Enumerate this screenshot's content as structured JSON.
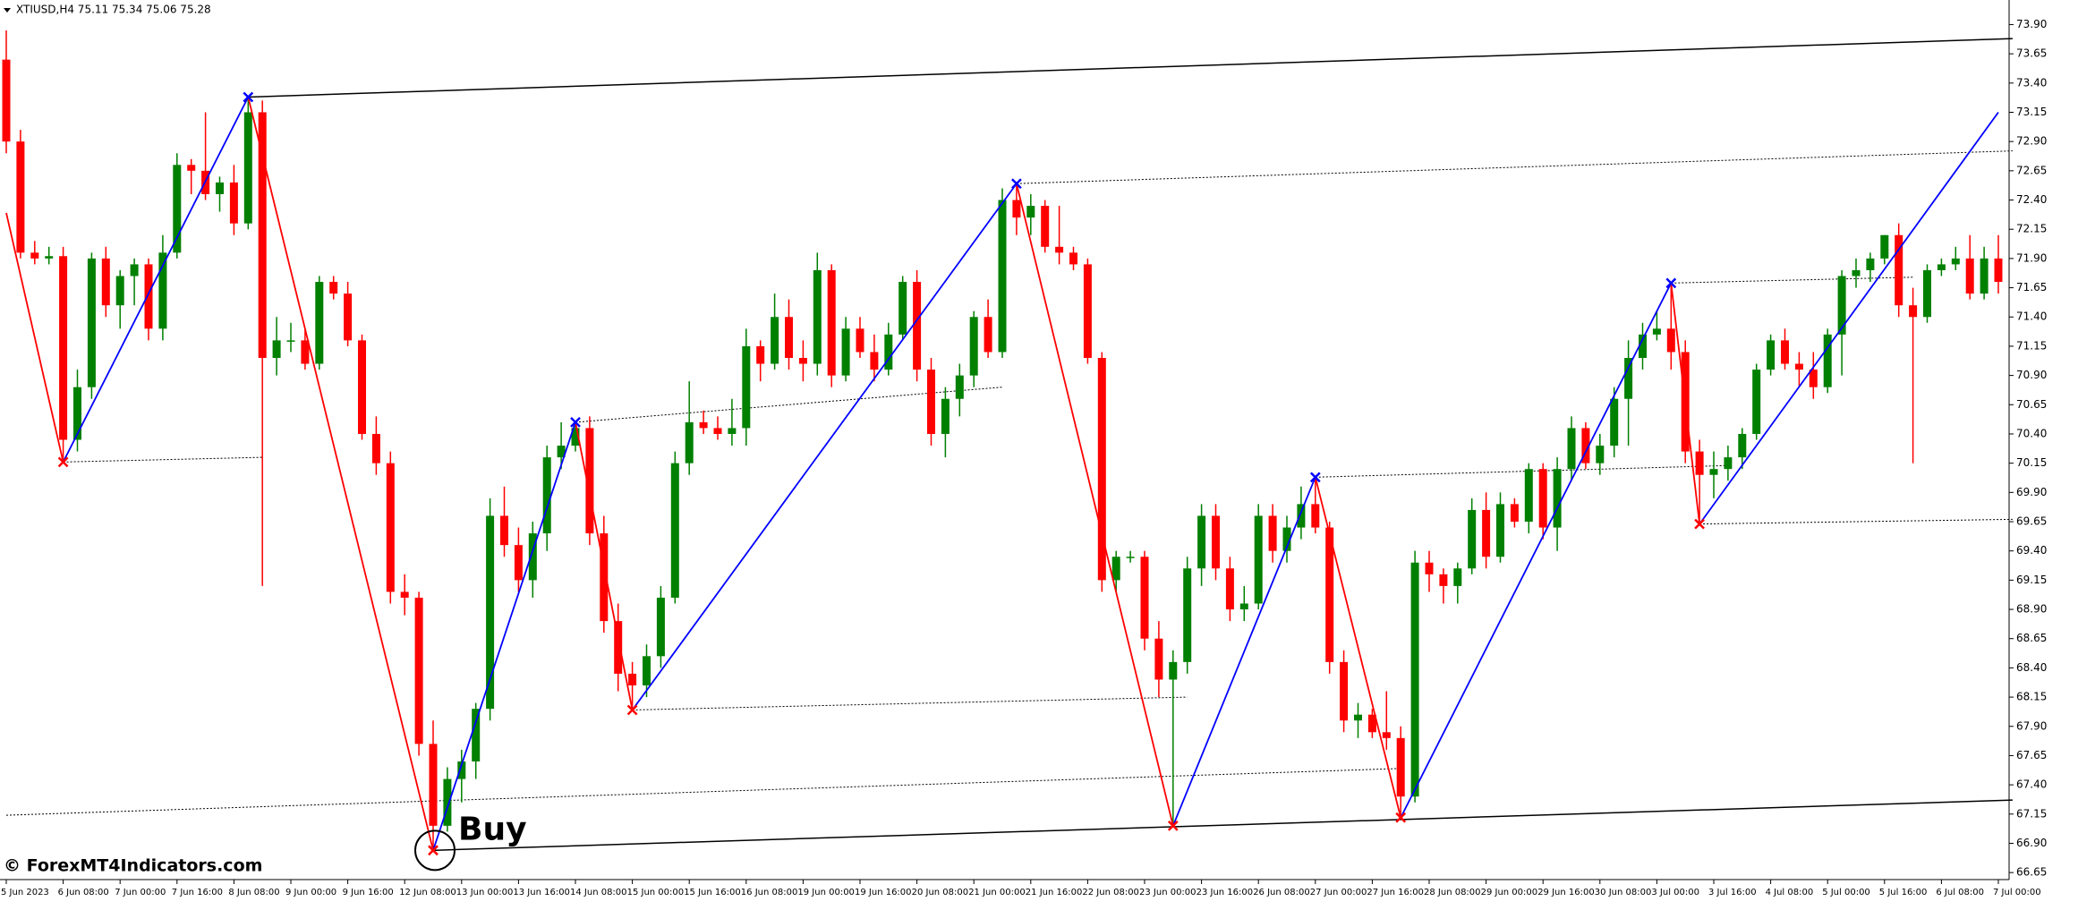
{
  "chart_data": {
    "type": "candlestick",
    "title": "XTIUSD,H4  75.11 75.34 75.06 75.28",
    "watermark": "© ForexMT4Indicators.com",
    "annotation": "Buy",
    "bull_color": "#008000",
    "bear_color": "#ff0000",
    "ylim": [
      66.59,
      74.11
    ],
    "yticks": [
      {
        "value": 73.9,
        "label": "73.90"
      },
      73.65,
      {
        "value": 73.4,
        "label": "73.40"
      },
      73.15,
      {
        "value": 72.9,
        "label": "72.90"
      },
      72.65,
      {
        "value": 72.4,
        "label": "72.40"
      },
      72.15,
      {
        "value": 71.9,
        "label": "71.90"
      },
      71.65,
      {
        "value": 71.4,
        "label": "71.40"
      },
      71.15,
      {
        "value": 70.9,
        "label": "70.90"
      },
      70.65,
      {
        "value": 70.4,
        "label": "70.40"
      },
      70.15,
      {
        "value": 69.9,
        "label": "69.90"
      },
      69.65,
      {
        "value": 69.4,
        "label": "69.40"
      },
      69.15,
      {
        "value": 68.9,
        "label": "68.90"
      },
      68.65,
      {
        "value": 68.4,
        "label": "68.40"
      },
      68.15,
      {
        "value": 67.9,
        "label": "67.90"
      },
      67.65,
      {
        "value": 67.4,
        "label": "67.40"
      },
      67.15,
      {
        "value": 66.9,
        "label": "66.90"
      },
      66.65
    ],
    "x_labels": [
      "5 Jun 2023",
      "6 Jun 08:00",
      "7 Jun 00:00",
      "7 Jun 16:00",
      "8 Jun 08:00",
      "9 Jun 00:00",
      "9 Jun 16:00",
      "12 Jun 08:00",
      "13 Jun 00:00",
      "13 Jun 16:00",
      "14 Jun 08:00",
      "15 Jun 00:00",
      "15 Jun 16:00",
      "16 Jun 08:00",
      "19 Jun 00:00",
      "19 Jun 16:00",
      "20 Jun 08:00",
      "21 Jun 00:00",
      "21 Jun 16:00",
      "22 Jun 08:00",
      "23 Jun 00:00",
      "23 Jun 16:00",
      "26 Jun 08:00",
      "27 Jun 00:00",
      "27 Jun 16:00",
      "28 Jun 08:00",
      "29 Jun 00:00",
      "29 Jun 16:00",
      "30 Jun 08:00",
      "3 Jul 00:00",
      "3 Jul 16:00",
      "4 Jul 08:00",
      "5 Jul 00:00",
      "5 Jul 16:00",
      "6 Jul 08:00",
      "7 Jul 00:00"
    ],
    "open": [
      73.6,
      72.9,
      71.95,
      71.9,
      71.92,
      70.35,
      70.8,
      71.9,
      71.5,
      71.75,
      71.85,
      71.3,
      71.95,
      72.7,
      72.65,
      72.45,
      72.55,
      72.2,
      73.15,
      71.05,
      71.2,
      71.2,
      71.0,
      71.7,
      71.6,
      71.2,
      70.4,
      70.15,
      69.05,
      69.0,
      67.75,
      67.05,
      67.45,
      67.6,
      68.05,
      69.7,
      69.45,
      69.15,
      69.55,
      70.2,
      70.3,
      70.45,
      69.55,
      68.8,
      68.35,
      68.25,
      68.5,
      69.0,
      70.15,
      70.5,
      70.45,
      70.4,
      70.45,
      71.15,
      71.0,
      71.4,
      71.05,
      71.0,
      71.8,
      70.9,
      71.3,
      71.1,
      70.95,
      71.25,
      71.7,
      70.95,
      70.4,
      70.7,
      70.9,
      71.4,
      71.1,
      72.4,
      72.25,
      72.35,
      72.0,
      71.95,
      71.85,
      71.05,
      69.15,
      69.35,
      69.35,
      68.65,
      68.3,
      68.45,
      69.25,
      69.7,
      69.25,
      68.9,
      68.95,
      69.7,
      69.4,
      69.6,
      69.8,
      69.6,
      68.45,
      67.95,
      68.0,
      67.85,
      67.8,
      67.3,
      69.3,
      69.2,
      69.1,
      69.25,
      69.75,
      69.35,
      69.8,
      69.65,
      70.1,
      69.6,
      70.1,
      70.45,
      70.15,
      70.3,
      70.7,
      71.05,
      71.25,
      71.3,
      71.1,
      70.25,
      70.05,
      70.1,
      70.2,
      70.4,
      70.95,
      71.2,
      71.0,
      70.95,
      70.8,
      71.25,
      71.75,
      71.8,
      71.9,
      72.1,
      71.5,
      71.4,
      71.8,
      71.85,
      71.9,
      71.6,
      71.9
    ],
    "high": [
      73.85,
      73.0,
      72.05,
      72.0,
      72.0,
      70.95,
      71.95,
      72.0,
      71.8,
      71.9,
      71.9,
      72.1,
      72.8,
      72.75,
      73.15,
      72.6,
      72.7,
      73.28,
      73.25,
      71.4,
      71.35,
      71.3,
      71.75,
      71.75,
      71.7,
      71.25,
      70.55,
      70.25,
      69.2,
      69.05,
      67.95,
      67.55,
      67.7,
      68.1,
      69.85,
      69.95,
      69.6,
      69.65,
      70.3,
      70.5,
      70.5,
      70.55,
      69.7,
      68.95,
      68.45,
      68.6,
      69.1,
      70.25,
      70.85,
      70.6,
      70.55,
      70.7,
      71.3,
      71.2,
      71.6,
      71.55,
      71.2,
      71.95,
      71.85,
      71.4,
      71.4,
      71.25,
      71.35,
      71.75,
      71.8,
      71.05,
      70.8,
      71.0,
      71.45,
      71.55,
      72.5,
      72.54,
      72.45,
      72.4,
      72.35,
      72.0,
      71.9,
      71.1,
      69.4,
      69.4,
      69.4,
      68.8,
      68.55,
      69.35,
      69.8,
      69.8,
      69.35,
      69.1,
      69.8,
      69.8,
      69.7,
      69.95,
      70.03,
      69.65,
      68.55,
      68.1,
      68.05,
      68.2,
      67.9,
      69.4,
      69.4,
      69.25,
      69.3,
      69.85,
      69.9,
      69.9,
      69.85,
      70.15,
      70.15,
      70.2,
      70.55,
      70.5,
      70.4,
      70.8,
      71.2,
      71.35,
      71.45,
      71.69,
      71.2,
      70.35,
      70.25,
      70.3,
      70.45,
      71.0,
      71.25,
      71.3,
      71.1,
      71.1,
      71.3,
      71.8,
      71.9,
      71.95,
      72.1,
      72.2,
      71.65,
      71.85,
      71.9,
      72.0,
      72.1,
      72.0,
      72.1
    ],
    "low": [
      72.8,
      71.9,
      71.85,
      71.85,
      70.16,
      70.25,
      70.7,
      71.4,
      71.3,
      71.5,
      71.2,
      71.2,
      71.9,
      72.45,
      72.4,
      72.3,
      72.1,
      72.15,
      69.1,
      70.9,
      71.1,
      70.95,
      70.95,
      71.55,
      71.15,
      70.35,
      70.05,
      68.95,
      68.85,
      67.65,
      66.84,
      67.0,
      67.25,
      67.45,
      67.95,
      69.35,
      69.05,
      69.0,
      69.4,
      70.1,
      70.25,
      69.45,
      68.7,
      68.2,
      68.04,
      68.15,
      68.4,
      68.95,
      70.05,
      70.4,
      70.35,
      70.3,
      70.3,
      70.85,
      70.95,
      70.95,
      70.85,
      70.9,
      70.8,
      70.85,
      71.05,
      70.85,
      70.9,
      71.2,
      70.85,
      70.3,
      70.2,
      70.55,
      70.8,
      71.05,
      71.05,
      72.1,
      72.1,
      71.95,
      71.85,
      71.8,
      71.0,
      69.05,
      69.05,
      69.3,
      68.55,
      68.15,
      67.05,
      68.35,
      69.1,
      69.15,
      68.8,
      68.8,
      68.9,
      69.3,
      69.3,
      69.5,
      69.55,
      68.35,
      67.85,
      67.8,
      67.8,
      67.7,
      67.12,
      67.25,
      69.05,
      68.95,
      68.95,
      69.2,
      69.25,
      69.3,
      69.6,
      69.55,
      69.5,
      69.4,
      70.0,
      70.1,
      70.05,
      70.2,
      70.3,
      70.95,
      71.2,
      70.95,
      70.15,
      69.63,
      69.85,
      70.0,
      70.1,
      70.35,
      70.9,
      70.95,
      70.8,
      70.7,
      70.75,
      70.9,
      71.65,
      71.7,
      71.85,
      71.4,
      70.15,
      71.35,
      71.75,
      71.8,
      71.55,
      71.55,
      71.6
    ],
    "close": [
      72.9,
      71.95,
      71.9,
      71.92,
      70.35,
      70.8,
      71.9,
      71.5,
      71.75,
      71.85,
      71.3,
      71.95,
      72.7,
      72.65,
      72.45,
      72.55,
      72.2,
      73.15,
      71.05,
      71.2,
      71.2,
      71.0,
      71.7,
      71.6,
      71.2,
      70.4,
      70.15,
      69.05,
      69.0,
      67.75,
      67.05,
      67.45,
      67.6,
      68.05,
      69.7,
      69.45,
      69.15,
      69.55,
      70.2,
      70.3,
      70.45,
      69.55,
      68.8,
      68.35,
      68.25,
      68.5,
      69.0,
      70.15,
      70.5,
      70.45,
      70.4,
      70.45,
      71.15,
      71.0,
      71.4,
      71.05,
      71.0,
      71.8,
      70.9,
      71.3,
      71.1,
      70.95,
      71.25,
      71.7,
      70.95,
      70.4,
      70.7,
      70.9,
      71.4,
      71.1,
      72.4,
      72.25,
      72.35,
      72.0,
      71.95,
      71.85,
      71.05,
      69.15,
      69.35,
      69.35,
      68.65,
      68.3,
      68.45,
      69.25,
      69.7,
      69.25,
      68.9,
      68.95,
      69.7,
      69.4,
      69.6,
      69.8,
      69.6,
      68.45,
      67.95,
      68.0,
      67.85,
      67.8,
      67.3,
      69.3,
      69.2,
      69.1,
      69.25,
      69.75,
      69.35,
      69.8,
      69.65,
      70.1,
      69.6,
      70.1,
      70.45,
      70.15,
      70.3,
      70.7,
      71.05,
      71.25,
      71.3,
      71.1,
      70.25,
      70.05,
      70.1,
      70.2,
      70.4,
      70.95,
      71.2,
      71.0,
      70.95,
      70.8,
      71.25,
      71.75,
      71.8,
      71.9,
      72.1,
      71.5,
      71.4,
      71.8,
      71.85,
      71.9,
      71.6,
      71.9,
      71.7
    ],
    "zigzag": {
      "up_color": "#0000ff",
      "down_color": "#ff0000",
      "x": [
        0,
        4,
        17,
        30,
        40,
        44,
        71,
        82,
        92,
        98,
        117,
        119,
        140
      ],
      "y": [
        72.29,
        70.16,
        73.28,
        66.84,
        70.5,
        68.04,
        72.54,
        67.05,
        70.03,
        67.12,
        71.69,
        69.63,
        73.15
      ]
    },
    "trendlines": [
      {
        "style": "solid",
        "x": [
          17,
          141
        ],
        "y": [
          73.28,
          73.78
        ]
      },
      {
        "style": "solid",
        "x": [
          30,
          141
        ],
        "y": [
          66.84,
          67.27
        ]
      },
      {
        "style": "dotted",
        "x": [
          4,
          18
        ],
        "y": [
          70.16,
          70.2
        ]
      },
      {
        "style": "dotted",
        "x": [
          40,
          70
        ],
        "y": [
          70.5,
          70.8
        ]
      },
      {
        "style": "dotted",
        "x": [
          44,
          83
        ],
        "y": [
          68.04,
          68.15
        ]
      },
      {
        "style": "dotted",
        "x": [
          71,
          141
        ],
        "y": [
          72.54,
          72.82
        ]
      },
      {
        "style": "dotted",
        "x": [
          92,
          121
        ],
        "y": [
          70.03,
          70.13
        ]
      },
      {
        "style": "dotted",
        "x": [
          117,
          134
        ],
        "y": [
          71.69,
          71.74
        ]
      },
      {
        "style": "dotted",
        "x": [
          119,
          141
        ],
        "y": [
          69.63,
          69.67
        ]
      },
      {
        "style": "dotted",
        "x": [
          0,
          98
        ],
        "y": [
          67.14,
          67.54
        ]
      }
    ]
  }
}
